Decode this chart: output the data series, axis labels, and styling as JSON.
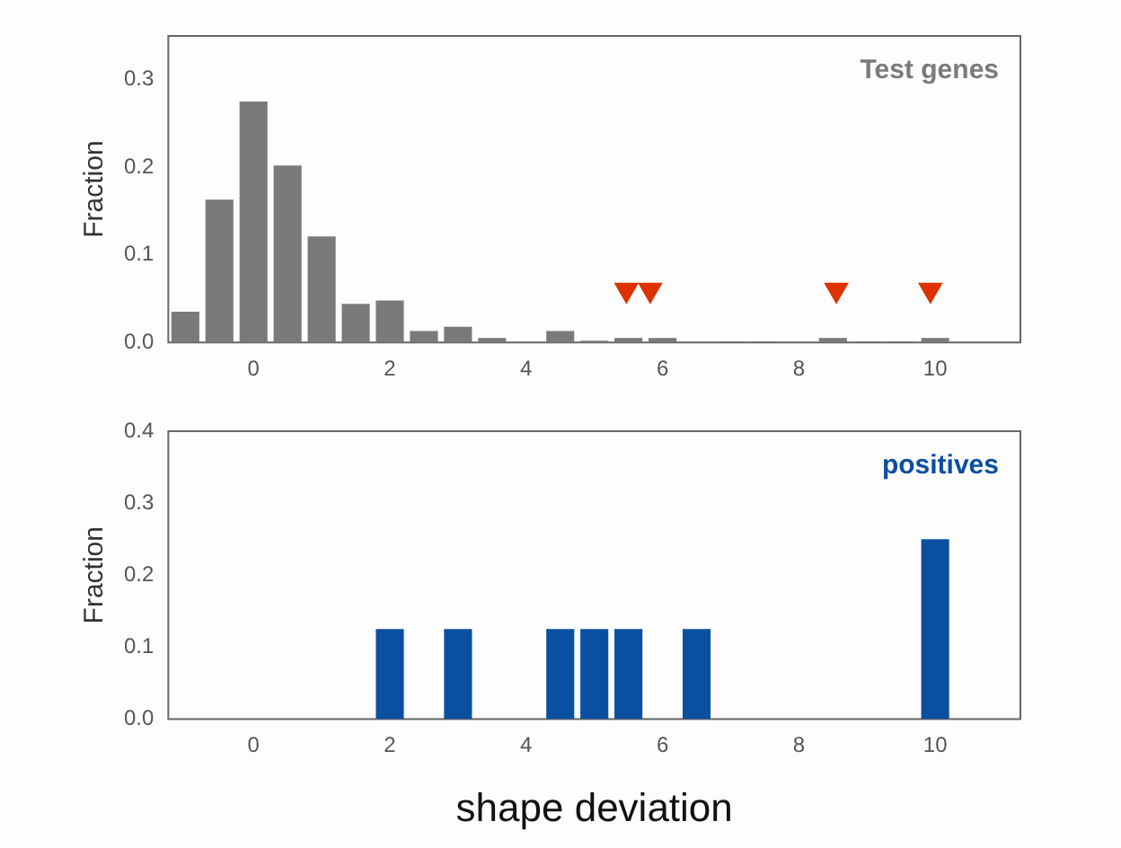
{
  "chart_data": [
    {
      "type": "histogram",
      "ylabel": "Fraction",
      "bins": [
        -1.25,
        -0.75,
        -0.25,
        0.25,
        0.75,
        1.25,
        1.75,
        2.25,
        2.75,
        3.25,
        3.75,
        4.25,
        4.75,
        5.25,
        5.75,
        6.25,
        6.75,
        7.25,
        7.75,
        8.25,
        8.75,
        9.25,
        9.75,
        10.25
      ],
      "series": [
        {
          "name": "Test genes",
          "color": "#7a7a7a",
          "values": [
            0.035,
            0.163,
            0.275,
            0.202,
            0.121,
            0.044,
            0.048,
            0.013,
            0.018,
            0.005,
            0,
            0.013,
            0.002,
            0.005,
            0.005,
            0,
            0.001,
            0.001,
            0,
            0.005,
            0.001,
            0.001,
            0.005
          ]
        },
        {
          "type": "scatter",
          "color": "#dd3300",
          "marker": "triangle",
          "x": [
            5.47,
            5.82,
            8.55,
            9.93
          ],
          "values": [
            0.06,
            0.06,
            0.06,
            0.06
          ]
        }
      ],
      "xlim": [
        -1.25,
        11.25
      ],
      "ylim": [
        0,
        0.35
      ],
      "xticks": [
        0,
        2,
        4,
        6,
        8,
        10
      ],
      "yticks": [
        {
          "value": 0,
          "label": "0.0"
        },
        {
          "value": 0.1,
          "label": "0.1"
        },
        {
          "value": 0.2,
          "label": "0.2"
        },
        {
          "value": 0.3,
          "label": "0.3"
        }
      ],
      "grid": false,
      "legend": false
    },
    {
      "type": "histogram",
      "ylabel": "Fraction",
      "xlabel": "shape deviation",
      "bins": [
        -1.25,
        -0.75,
        -0.25,
        0.25,
        0.75,
        1.25,
        1.75,
        2.25,
        2.75,
        3.25,
        3.75,
        4.25,
        4.75,
        5.25,
        5.75,
        6.25,
        6.75,
        7.25,
        7.75,
        8.25,
        8.75,
        9.25,
        9.75,
        10.25
      ],
      "series": [
        {
          "name": "positives",
          "color": "#0a4fa0",
          "values": [
            0,
            0,
            0,
            0,
            0,
            0,
            0.125,
            0,
            0.125,
            0,
            0,
            0.125,
            0.125,
            0.125,
            0,
            0.125,
            0,
            0,
            0,
            0,
            0,
            0,
            0.25
          ]
        }
      ],
      "xlim": [
        -1.25,
        11.25
      ],
      "ylim": [
        0,
        0.4
      ],
      "xticks": [
        0,
        2,
        4,
        6,
        8,
        10
      ],
      "yticks": [
        {
          "value": 0,
          "label": "0.0"
        },
        {
          "value": 0.1,
          "label": "0.1"
        },
        {
          "value": 0.2,
          "label": "0.2"
        },
        {
          "value": 0.3,
          "label": "0.3"
        },
        {
          "value": 0.4,
          "label": "0.4"
        }
      ],
      "grid": false,
      "legend": false
    }
  ]
}
